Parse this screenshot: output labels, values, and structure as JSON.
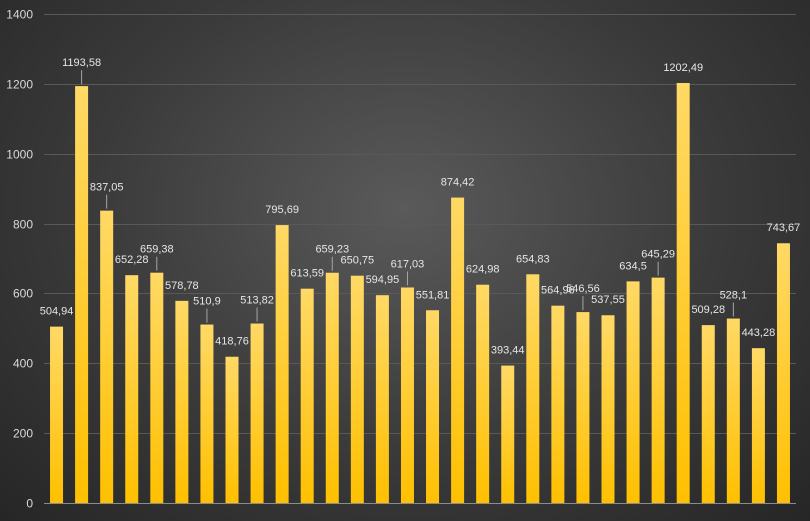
{
  "colors": {
    "bar_top": "#ffd966",
    "bar_bottom": "#ffc000",
    "gridline": "#595959",
    "axis_line": "#8c8c8c",
    "text": "#d9d9d9",
    "leader": "#a6a6a6"
  },
  "chart_data": {
    "type": "bar",
    "title": "",
    "xlabel": "",
    "ylabel": "",
    "ylim": [
      0,
      1400
    ],
    "yticks": [
      0,
      200,
      400,
      600,
      800,
      1000,
      1200,
      1400
    ],
    "grid": true,
    "legend": "none",
    "values": [
      504.94,
      1193.58,
      837.05,
      652.28,
      659.38,
      578.78,
      510.9,
      418.76,
      513.82,
      795.69,
      613.59,
      659.23,
      650.75,
      594.95,
      617.03,
      551.81,
      874.42,
      624.98,
      393.44,
      654.83,
      564.96,
      546.56,
      537.55,
      634.5,
      645.29,
      1202.49,
      509.28,
      528.1,
      443.28,
      743.67
    ],
    "labels": [
      "504,94",
      "1193,58",
      "837,05",
      "652,28",
      "659,38",
      "578,78",
      "510,9",
      "418,76",
      "513,82",
      "795,69",
      "613,59",
      "659,23",
      "650,75",
      "594,95",
      "617,03",
      "551,81",
      "874,42",
      "624,98",
      "393,44",
      "654,83",
      "564,96",
      "546,56",
      "537,55",
      "634,5",
      "645,29",
      "1202,49",
      "509,28",
      "528,1",
      "443,28",
      "743,67"
    ]
  }
}
